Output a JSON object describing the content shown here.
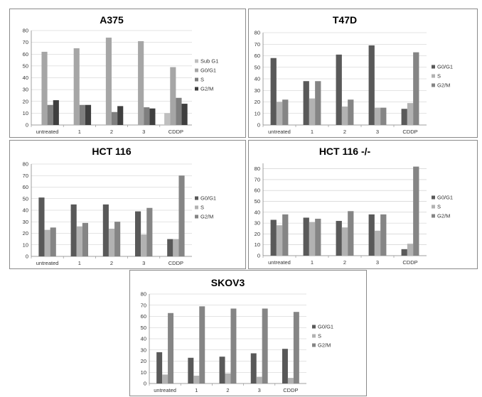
{
  "colors": {
    "g0g1": "#595959",
    "s": "#b2b2b2",
    "g2m": "#858585",
    "subg1": "#bfbfbf",
    "a375_g0g1": "#a6a6a6",
    "a375_s": "#7f7f7f",
    "a375_g2m": "#3f3f3f"
  },
  "chart_data": [
    {
      "type": "bar",
      "title": "A375",
      "categories": [
        "untreated",
        "1",
        "2",
        "3",
        "CDDP"
      ],
      "ylim": [
        0,
        80
      ],
      "yticks": [
        0,
        10,
        20,
        30,
        40,
        50,
        60,
        70,
        80
      ],
      "series": [
        {
          "name": "Sub G1",
          "color_key": "subg1",
          "values": [
            0,
            0,
            0,
            0,
            10
          ]
        },
        {
          "name": "G0/G1",
          "color_key": "a375_g0g1",
          "values": [
            62,
            65,
            74,
            71,
            49
          ]
        },
        {
          "name": "S",
          "color_key": "a375_s",
          "values": [
            17,
            17,
            11,
            15,
            23
          ]
        },
        {
          "name": "G2/M",
          "color_key": "a375_g2m",
          "values": [
            21,
            17,
            16,
            14,
            18
          ]
        }
      ]
    },
    {
      "type": "bar",
      "title": "T47D",
      "categories": [
        "untreated",
        "1",
        "2",
        "3",
        "CDDP"
      ],
      "ylim": [
        0,
        80
      ],
      "yticks": [
        0,
        10,
        20,
        30,
        40,
        50,
        60,
        70,
        80
      ],
      "series": [
        {
          "name": "G0/G1",
          "color_key": "g0g1",
          "values": [
            58,
            38,
            61,
            69,
            14
          ]
        },
        {
          "name": "S",
          "color_key": "s",
          "values": [
            20,
            23,
            16,
            15,
            19
          ]
        },
        {
          "name": "G2/M",
          "color_key": "g2m",
          "values": [
            22,
            38,
            22,
            15,
            63
          ]
        }
      ]
    },
    {
      "type": "bar",
      "title": "HCT 116",
      "categories": [
        "untreated",
        "1",
        "2",
        "3",
        "CDDP"
      ],
      "ylim": [
        0,
        80
      ],
      "yticks": [
        0,
        10,
        20,
        30,
        40,
        50,
        60,
        70,
        80
      ],
      "series": [
        {
          "name": "G0/G1",
          "color_key": "g0g1",
          "values": [
            51,
            45,
            45,
            39,
            15
          ]
        },
        {
          "name": "S",
          "color_key": "s",
          "values": [
            23,
            26,
            24,
            19,
            15
          ]
        },
        {
          "name": "G2/M",
          "color_key": "g2m",
          "values": [
            25,
            29,
            30,
            42,
            70
          ]
        }
      ]
    },
    {
      "type": "bar",
      "title": "HCT 116 -/-",
      "categories": [
        "untreated",
        "1",
        "2",
        "3",
        "CDDP"
      ],
      "ylim": [
        0,
        85
      ],
      "yticks": [
        0,
        10,
        20,
        30,
        40,
        50,
        60,
        70,
        80
      ],
      "series": [
        {
          "name": "G0/G1",
          "color_key": "g0g1",
          "values": [
            33,
            35,
            32,
            38,
            6
          ]
        },
        {
          "name": "S",
          "color_key": "s",
          "values": [
            28,
            31,
            26,
            23,
            11
          ]
        },
        {
          "name": "G2/M",
          "color_key": "g2m",
          "values": [
            38,
            34,
            41,
            38,
            82
          ]
        }
      ]
    },
    {
      "type": "bar",
      "title": "SKOV3",
      "categories": [
        "untreated",
        "1",
        "2",
        "3",
        "CDDP"
      ],
      "ylim": [
        0,
        80
      ],
      "yticks": [
        0,
        10,
        20,
        30,
        40,
        50,
        60,
        70,
        80
      ],
      "series": [
        {
          "name": "G0/G1",
          "color_key": "g0g1",
          "values": [
            28,
            23,
            24,
            27,
            31
          ]
        },
        {
          "name": "S",
          "color_key": "s",
          "values": [
            8,
            7,
            9,
            6,
            5
          ]
        },
        {
          "name": "G2/M",
          "color_key": "g2m",
          "values": [
            63,
            69,
            67,
            67,
            64
          ]
        }
      ]
    }
  ]
}
